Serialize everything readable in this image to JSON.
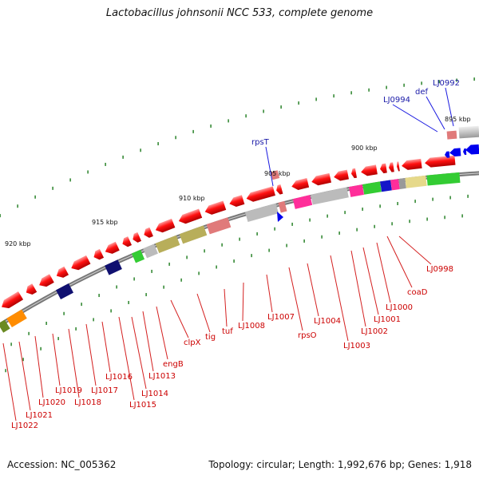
{
  "title": "Lactobacillus johnsonii NCC 533, complete genome",
  "footer": {
    "accession": "Accession: NC_005362",
    "summary": "Topology: circular; Length: 1,992,676 bp; Genes: 1,918"
  },
  "kbp_marks": [
    "895 kbp",
    "900 kbp",
    "905 kbp",
    "910 kbp",
    "915 kbp",
    "920 kbp"
  ],
  "gene_labels_top": [
    "LJ0992",
    "def",
    "LJ0994",
    "rpsT"
  ],
  "gene_labels_bottom": [
    "LJ0998",
    "coaD",
    "LJ1000",
    "LJ1001",
    "LJ1002",
    "LJ1003",
    "LJ1004",
    "rpsO",
    "LJ1007",
    "LJ1008",
    "tuf",
    "tig",
    "clpX",
    "engB",
    "LJ1013",
    "LJ1014",
    "LJ1015",
    "LJ1016",
    "LJ1017",
    "LJ1018",
    "LJ1019",
    "LJ1020",
    "LJ1021",
    "LJ1022"
  ]
}
